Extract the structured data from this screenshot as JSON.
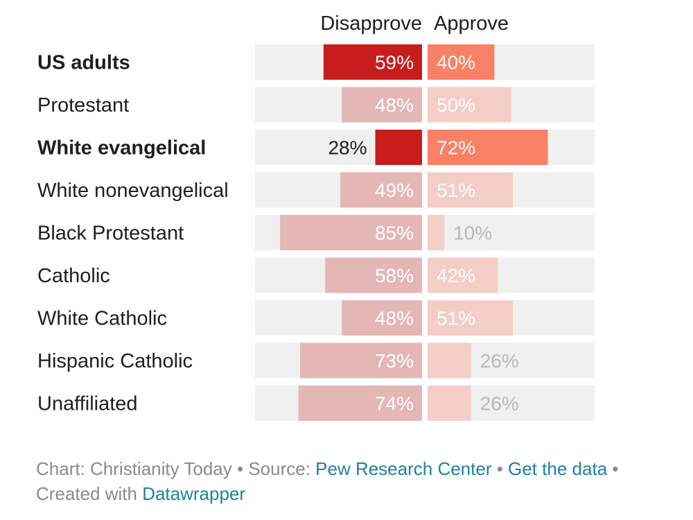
{
  "chart_data": {
    "type": "bar",
    "orientation": "horizontal-diverging",
    "column_headers": [
      "Disapprove",
      "Approve"
    ],
    "categories": [
      "US adults",
      "Protestant",
      "White evangelical",
      "White nonevangelical",
      "Black Protestant",
      "Catholic",
      "White Catholic",
      "Hispanic Catholic",
      "Unaffiliated"
    ],
    "highlighted": [
      "US adults",
      "White evangelical"
    ],
    "series": [
      {
        "name": "Disapprove",
        "values": [
          59,
          48,
          28,
          49,
          85,
          58,
          48,
          73,
          74
        ],
        "labels": [
          "59%",
          "48%",
          "28%",
          "49%",
          "85%",
          "58%",
          "48%",
          "73%",
          "74%"
        ]
      },
      {
        "name": "Approve",
        "values": [
          40,
          50,
          72,
          51,
          10,
          42,
          51,
          26,
          26
        ],
        "labels": [
          "40%",
          "50%",
          "72%",
          "51%",
          "10%",
          "42%",
          "51%",
          "26%",
          "26%"
        ]
      }
    ],
    "xlim": [
      0,
      100
    ],
    "colors": {
      "disapprove_highlight": "#c71e1d",
      "approve_highlight": "#fa8066",
      "disapprove_muted": "#e4b7b6",
      "approve_muted": "#f4cdc6",
      "track": "#f0f0f0"
    }
  },
  "footer": {
    "chart_prefix": "Chart: Christianity Today",
    "sep": " • ",
    "source_prefix": "Source: ",
    "source_link": "Pew Research Center",
    "get_data": "Get the data",
    "created_prefix": "Created with ",
    "created_link": "Datawrapper"
  }
}
